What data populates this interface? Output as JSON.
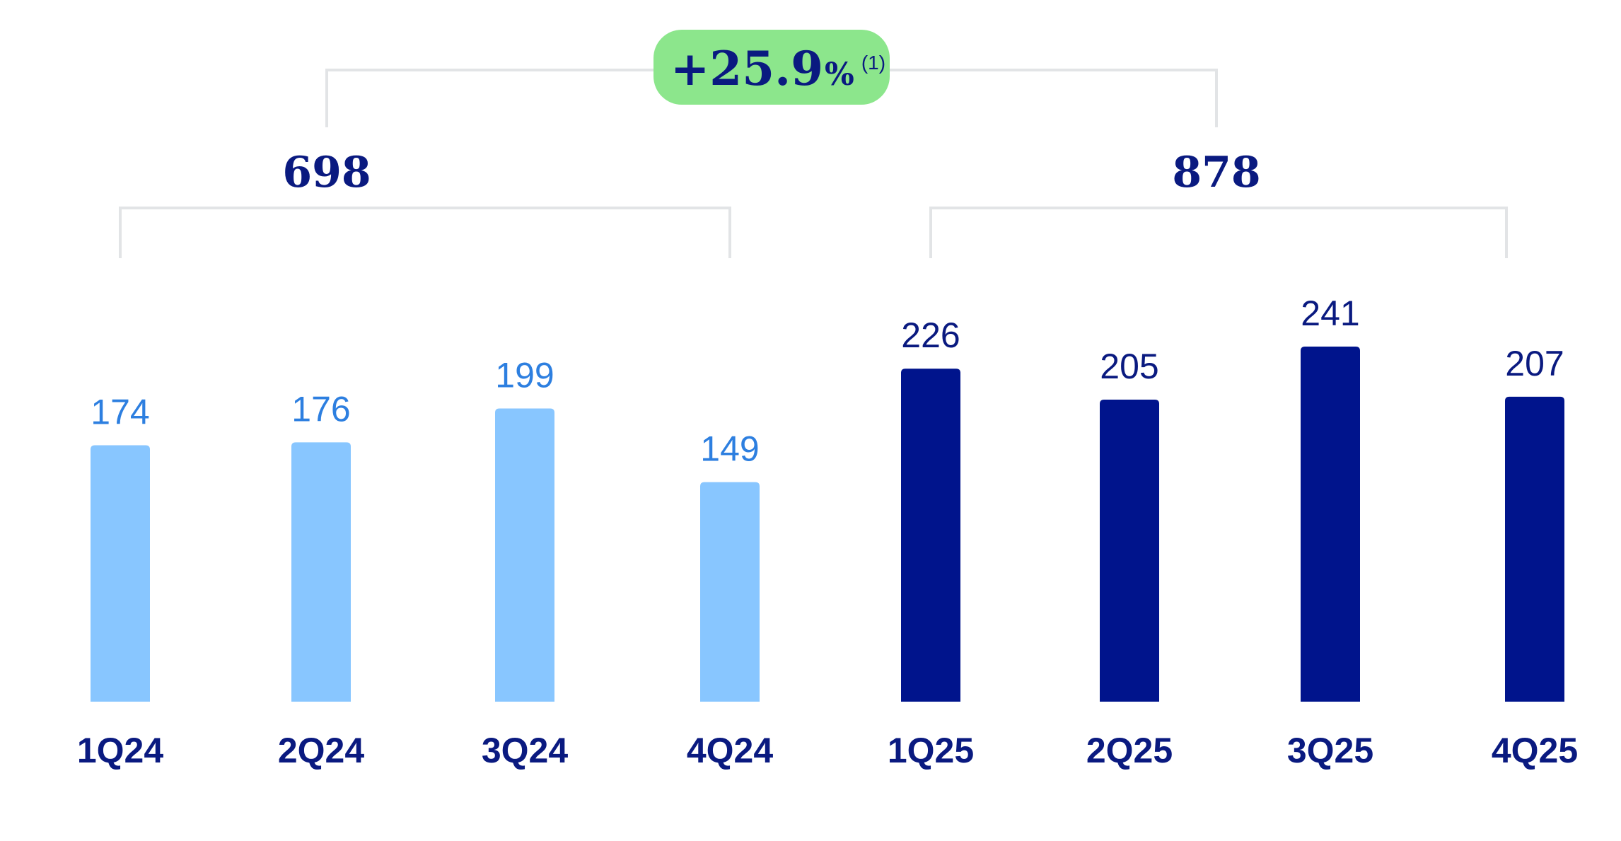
{
  "chart_data": {
    "type": "bar",
    "categories": [
      "1Q24",
      "2Q24",
      "3Q24",
      "4Q24",
      "1Q25",
      "2Q25",
      "3Q25",
      "4Q25"
    ],
    "values": [
      174,
      176,
      199,
      149,
      226,
      205,
      241,
      207
    ],
    "value_labels": [
      "174",
      "176",
      "199",
      "149",
      "226",
      "205",
      "241",
      "207"
    ],
    "groups": [
      {
        "total_label": "698",
        "bar_color": "#88c6ff",
        "label_color": "#2d7fe0"
      },
      {
        "total_label": "878",
        "bar_color": "#00148c",
        "label_color": "#0a1a80"
      }
    ],
    "growth_badge": {
      "value": "+25.9",
      "unit": "%",
      "note": "(1)",
      "color": "#8ce68c"
    },
    "ylim": [
      0,
      241
    ],
    "grid": false,
    "legend": "none",
    "bracket_color": "#e2e4e6"
  }
}
